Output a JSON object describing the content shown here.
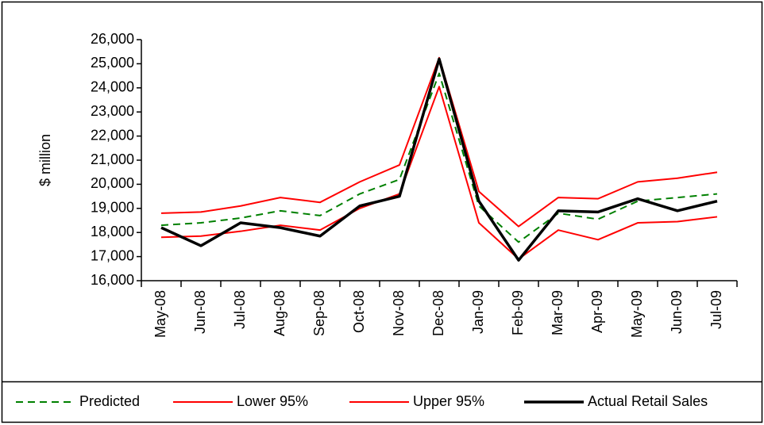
{
  "chart_data": {
    "type": "line",
    "y_label": "$ million",
    "categories": [
      "May-08",
      "Jun-08",
      "Jul-08",
      "Aug-08",
      "Sep-08",
      "Oct-08",
      "Nov-08",
      "Dec-08",
      "Jan-09",
      "Feb-09",
      "Mar-09",
      "Apr-09",
      "May-09",
      "Jun-09",
      "Jul-09"
    ],
    "series": [
      {
        "name": "Predicted",
        "color": "#008000",
        "dashed": true,
        "values": [
          18300,
          18400,
          18600,
          18900,
          18700,
          19600,
          20200,
          24600,
          19100,
          17600,
          18800,
          18550,
          19300,
          19450,
          19600
        ]
      },
      {
        "name": "Lower 95%",
        "color": "#ff0000",
        "dashed": false,
        "values": [
          17800,
          17850,
          18050,
          18300,
          18100,
          19000,
          19600,
          24050,
          18400,
          16900,
          18100,
          17700,
          18400,
          18450,
          18650
        ]
      },
      {
        "name": "Upper 95%",
        "color": "#ff0000",
        "dashed": false,
        "values": [
          18800,
          18850,
          19100,
          19450,
          19250,
          20100,
          20800,
          25250,
          19700,
          18250,
          19450,
          19400,
          20100,
          20250,
          20500
        ]
      },
      {
        "name": "Actual Retail Sales",
        "color": "#000000",
        "dashed": false,
        "values": [
          18200,
          17450,
          18400,
          18200,
          17850,
          19100,
          19500,
          25200,
          19300,
          16850,
          18900,
          18850,
          19400,
          18900,
          19300
        ]
      }
    ],
    "ylim": [
      16000,
      26000
    ],
    "yticks": [
      {
        "value": 16000,
        "label": "16,000"
      },
      {
        "value": 17000,
        "label": "17,000"
      },
      {
        "value": 18000,
        "label": "18,000"
      },
      {
        "value": 19000,
        "label": "19,000"
      },
      {
        "value": 20000,
        "label": "20,000"
      },
      {
        "value": 21000,
        "label": "21,000"
      },
      {
        "value": 22000,
        "label": "22,000"
      },
      {
        "value": 23000,
        "label": "23,000"
      },
      {
        "value": 24000,
        "label": "24,000"
      },
      {
        "value": 25000,
        "label": "25,000"
      },
      {
        "value": 26000,
        "label": "26,000"
      }
    ],
    "grid": false
  }
}
